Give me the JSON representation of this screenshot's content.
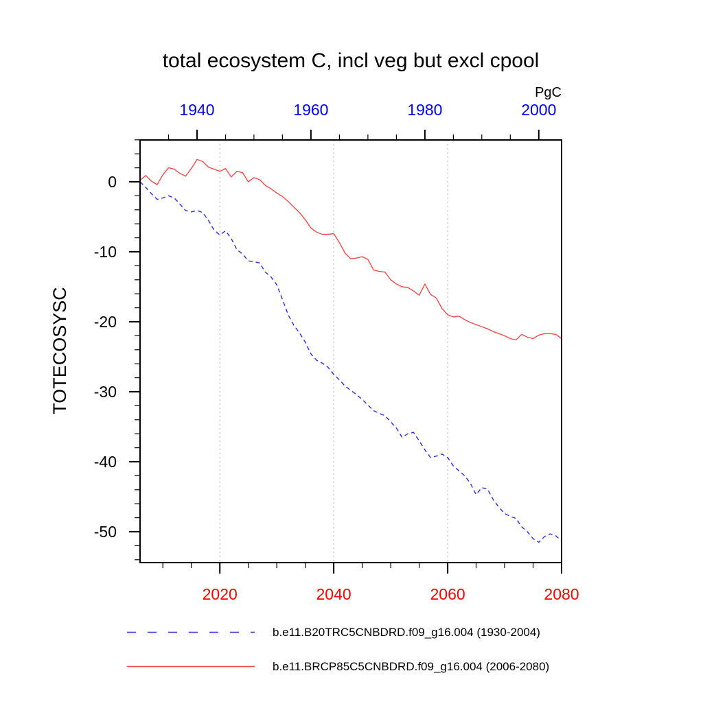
{
  "title": "total ecosystem C, incl veg but excl cpool",
  "units_label": "PgC",
  "y_axis": {
    "label": "TOTECOSYSC",
    "tick_labels": [
      "0",
      "-10",
      "-20",
      "-30",
      "-40",
      "-50"
    ],
    "tick_values": [
      0,
      -10,
      -20,
      -30,
      -40,
      -50
    ],
    "minor_step": 2,
    "range": [
      -54.4,
      6.0
    ],
    "color": "#000000"
  },
  "top_axis": {
    "tick_labels": [
      "1940",
      "1960",
      "1980",
      "2000"
    ],
    "tick_values": [
      1940,
      1960,
      1980,
      2000
    ],
    "minor_step": 5,
    "range": [
      1930,
      2004
    ],
    "color": "#0000ff"
  },
  "bottom_axis": {
    "tick_labels": [
      "2020",
      "2040",
      "2060",
      "2080"
    ],
    "tick_values": [
      2020,
      2040,
      2060,
      2080
    ],
    "minor_step": 5,
    "range": [
      2006,
      2080
    ],
    "color": "#ff0000"
  },
  "gridlines": {
    "bottom_axis_years": [
      2020,
      2040,
      2060
    ],
    "color": "#c9c9c9"
  },
  "legend": [
    {
      "label": "b.e11.B20TRC5CNBDRD.f09_g16.004 (1930-2004)",
      "color": "#2a2ae0",
      "style": "dashed"
    },
    {
      "label": "b.e11.BRCP85C5CNBDRD.f09_g16.004 (2006-2080)",
      "color": "#f04b4b",
      "style": "solid"
    }
  ],
  "chart_data": {
    "type": "line",
    "title": "total ecosystem C, incl veg but excl cpool",
    "ylabel": "TOTECOSYSC",
    "units": "PgC",
    "ylim": [
      -54.4,
      6.0
    ],
    "grid": "vertical dotted gridlines at bottom-axis years 2020, 2040, 2060",
    "legend_position": "below-plot",
    "top_axis_range": [
      1930,
      2004
    ],
    "bottom_axis_range": [
      2006,
      2080
    ],
    "series": [
      {
        "name": "b.e11.B20TRC5CNBDRD.f09_g16.004 (1930-2004)",
        "axis": "top",
        "start_year": 1930,
        "end_year": 2004,
        "color": "#2a2ae0",
        "line_style": "dashed",
        "values": [
          0.0,
          -0.8,
          -1.7,
          -2.5,
          -2.3,
          -2.0,
          -2.3,
          -3.2,
          -4.1,
          -4.3,
          -4.1,
          -4.4,
          -5.5,
          -6.9,
          -7.6,
          -7.0,
          -8.1,
          -9.7,
          -10.3,
          -11.3,
          -11.4,
          -11.6,
          -12.9,
          -13.6,
          -14.7,
          -16.8,
          -19.0,
          -20.5,
          -21.6,
          -22.9,
          -24.6,
          -25.5,
          -25.9,
          -26.5,
          -27.5,
          -28.3,
          -29.2,
          -29.8,
          -30.4,
          -31.1,
          -31.9,
          -32.7,
          -33.1,
          -33.4,
          -34.3,
          -35.2,
          -36.5,
          -36.0,
          -35.8,
          -37.0,
          -38.3,
          -39.4,
          -39.2,
          -38.9,
          -39.4,
          -40.6,
          -41.3,
          -42.0,
          -43.1,
          -44.7,
          -43.7,
          -43.9,
          -45.4,
          -46.5,
          -47.4,
          -47.8,
          -48.1,
          -49.3,
          -50.0,
          -51.0,
          -51.5,
          -50.7,
          -50.3,
          -50.6,
          -51.3
        ]
      },
      {
        "name": "b.e11.BRCP85C5CNBDRD.f09_g16.004 (2006-2080)",
        "axis": "bottom",
        "start_year": 2006,
        "end_year": 2080,
        "color": "#f04b4b",
        "line_style": "solid",
        "values": [
          0.2,
          0.9,
          0.1,
          -0.4,
          1.0,
          2.0,
          1.8,
          1.2,
          0.8,
          1.9,
          3.2,
          2.9,
          2.1,
          1.8,
          1.5,
          1.9,
          0.7,
          1.5,
          1.3,
          0.0,
          0.6,
          0.3,
          -0.5,
          -1.0,
          -1.6,
          -2.1,
          -2.8,
          -3.6,
          -4.4,
          -5.4,
          -6.6,
          -7.2,
          -7.5,
          -7.5,
          -7.4,
          -8.7,
          -10.2,
          -11.0,
          -10.9,
          -10.7,
          -11.1,
          -12.6,
          -12.8,
          -12.9,
          -14.0,
          -14.6,
          -15.0,
          -15.1,
          -15.6,
          -16.2,
          -14.6,
          -16.1,
          -16.6,
          -18.1,
          -19.0,
          -19.3,
          -19.2,
          -19.7,
          -20.1,
          -20.4,
          -20.7,
          -21.0,
          -21.4,
          -21.7,
          -22.0,
          -22.4,
          -22.6,
          -21.8,
          -22.2,
          -22.4,
          -21.9,
          -21.7,
          -21.7,
          -21.8,
          -22.4
        ]
      }
    ]
  }
}
